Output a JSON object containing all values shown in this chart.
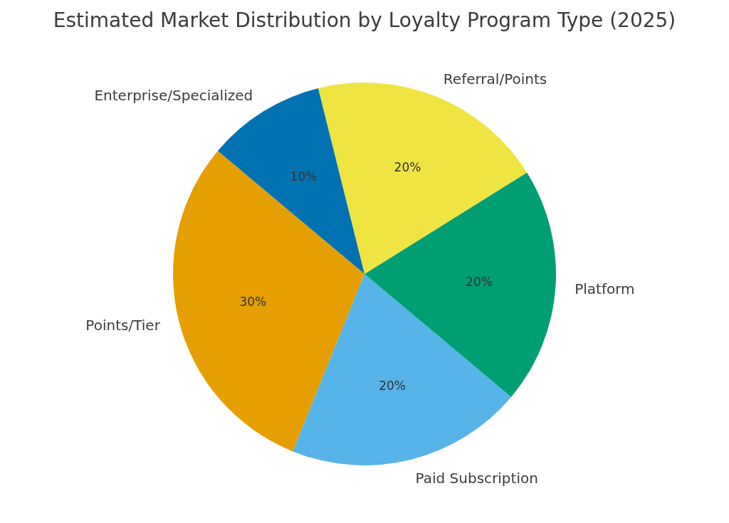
{
  "chart_data": {
    "type": "pie",
    "title": "Estimated Market Distribution by Loyalty Program Type (2025)",
    "categories": [
      "Points/Tier",
      "Paid Subscription",
      "Platform",
      "Referral/Points",
      "Enterprise/Specialized"
    ],
    "values": [
      30,
      20,
      20,
      20,
      10
    ],
    "colors": [
      "#e69f00",
      "#56b4e9",
      "#009e73",
      "#f0e442",
      "#0072b2"
    ],
    "value_labels": [
      "30%",
      "20%",
      "20%",
      "20%",
      "10%"
    ]
  }
}
